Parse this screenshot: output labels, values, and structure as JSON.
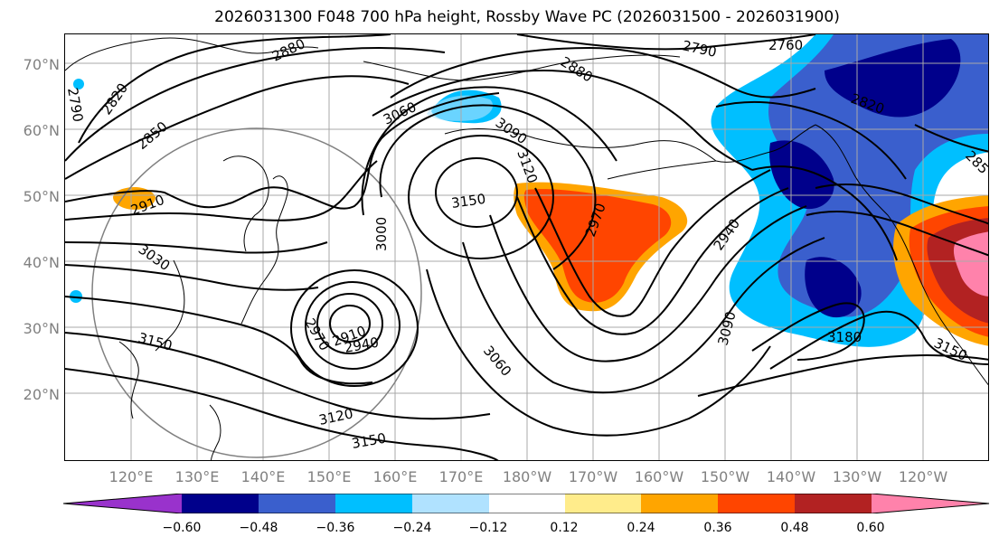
{
  "title": "2026031300 F048 700 hPa height, Rossby Wave PC (2026031500 - 2026031900)",
  "lat_labels": [
    "70°N",
    "60°N",
    "50°N",
    "40°N",
    "30°N",
    "20°N"
  ],
  "lon_labels": [
    "120°E",
    "130°E",
    "140°E",
    "150°E",
    "160°E",
    "170°E",
    "180°W",
    "170°W",
    "160°W",
    "150°W",
    "140°W",
    "130°W",
    "120°W"
  ],
  "contour_labels": [
    "2880",
    "2820",
    "2790",
    "2850",
    "2760",
    "2790",
    "2880",
    "2820",
    "3060",
    "3090",
    "3120",
    "2910",
    "3150",
    "2970",
    "3000",
    "3030",
    "2940",
    "3150",
    "2910",
    "2970",
    "2940",
    "3060",
    "3090",
    "3180",
    "3120",
    "3150",
    "3150",
    "285"
  ],
  "colorbar": {
    "ticks": [
      "−0.60",
      "−0.48",
      "−0.36",
      "−0.24",
      "−0.12",
      "0.12",
      "0.24",
      "0.36",
      "0.48",
      "0.60"
    ],
    "colors": [
      "#9932cc",
      "#00008b",
      "#3a5fcd",
      "#00bfff",
      "#b0e2ff",
      "#ffffff",
      "#ffec8b",
      "#ffa500",
      "#ff4500",
      "#b22222",
      "#ff82ab"
    ]
  },
  "shading_colors": {
    "neg_1": "#00bfff",
    "neg_2": "#3a5fcd",
    "neg_3": "#00008b",
    "neg_4": "#b0e2ff",
    "pos_1": "#ffa500",
    "pos_2": "#ff4500",
    "pos_3": "#b22222",
    "pos_4": "#ff82ab",
    "pos_5": "#ffec8b"
  }
}
